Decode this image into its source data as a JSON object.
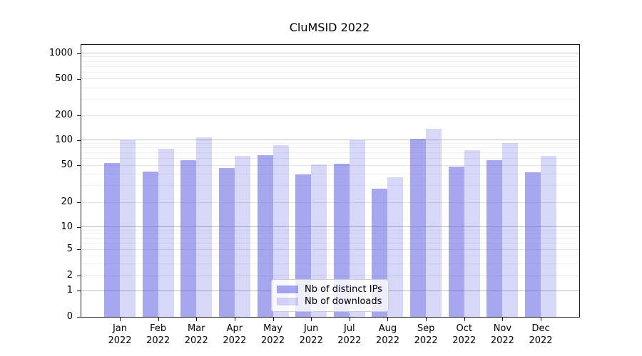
{
  "chart_data": {
    "type": "bar",
    "title": "CluMSID 2022",
    "categories": [
      "Jan",
      "Feb",
      "Mar",
      "Apr",
      "May",
      "Jun",
      "Jul",
      "Aug",
      "Sep",
      "Oct",
      "Nov",
      "Dec"
    ],
    "x_sub_label": "2022",
    "series": [
      {
        "name": "Nb of distinct IPs",
        "color": "rgba(95,95,226,0.55)",
        "color_hex_on_white": "#a7a7f1",
        "values": [
          53,
          43,
          57,
          47,
          66,
          40,
          52,
          28,
          104,
          48,
          57,
          42
        ]
      },
      {
        "name": "Nb of downloads",
        "color": "rgba(95,95,226,0.25)",
        "color_hex_on_white": "#dcdcf8",
        "values": [
          100,
          79,
          108,
          65,
          87,
          51,
          100,
          37,
          137,
          76,
          91,
          64
        ]
      }
    ],
    "y_ticks": [
      0,
      1,
      2,
      5,
      10,
      20,
      50,
      100,
      200,
      500,
      1000
    ],
    "y_minor_ticks": [
      3,
      4,
      6,
      7,
      8,
      9,
      30,
      40,
      60,
      70,
      80,
      90,
      300,
      400,
      600,
      700,
      800,
      900
    ],
    "ylim": [
      0,
      1250
    ],
    "yscale": "symlog",
    "xlabel": "",
    "ylabel": "",
    "grid": true,
    "legend": {
      "position": "lower center",
      "entries": [
        "Nb of distinct IPs",
        "Nb of downloads"
      ]
    }
  },
  "colors": {
    "grid_decade": "#bdbdbd",
    "grid_major": "#e4e4e4",
    "grid_minor": "#efefef",
    "axis": "#1a1a1a",
    "text": "#000000",
    "background": "#ffffff"
  }
}
